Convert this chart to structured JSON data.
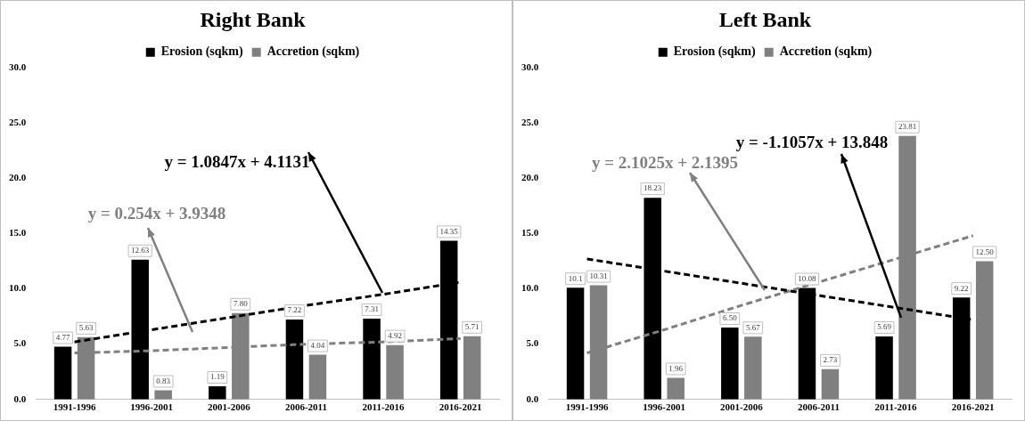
{
  "chart_data": [
    {
      "type": "bar",
      "title": "Right Bank",
      "categories": [
        "1991-1996",
        "1996-2001",
        "2001-2006",
        "2006-2011",
        "2011-2016",
        "2016-2021"
      ],
      "series": [
        {
          "name": "Erosion (sqkm)",
          "color": "#000000",
          "values": [
            4.77,
            12.63,
            1.19,
            7.22,
            7.31,
            14.35
          ],
          "value_labels": [
            "4.77",
            "12.63",
            "1.19",
            "7.22",
            "7.31",
            "14.35"
          ]
        },
        {
          "name": "Accretion (sqkm)",
          "color": "#808080",
          "values": [
            5.63,
            0.83,
            7.8,
            4.04,
            4.92,
            5.71
          ],
          "value_labels": [
            "5.63",
            "0.83",
            "7.80",
            "4.04",
            "4.92",
            "5.71"
          ]
        },
        {
          "type": "line",
          "color": "#000000",
          "line_style": "dashed",
          "values": [
            5.2,
            6.3,
            7.4,
            8.5,
            9.5,
            10.6
          ]
        },
        {
          "type": "line",
          "color": "#808080",
          "line_style": "dashed",
          "values": [
            4.2,
            4.4,
            4.7,
            5.0,
            5.2,
            5.5
          ]
        }
      ],
      "ylim": [
        0,
        30
      ],
      "yticks": [
        {
          "value": 0,
          "label": "0.0"
        },
        {
          "value": 5,
          "label": "5.0"
        },
        {
          "value": 10,
          "label": "10.0"
        },
        {
          "value": 15,
          "label": "15.0"
        },
        {
          "value": 20,
          "label": "20.0"
        },
        {
          "value": 25,
          "label": "25.0"
        },
        {
          "value": 30,
          "label": "30.0"
        }
      ],
      "grid": false,
      "legend": "top",
      "marker": "none",
      "annotations": [
        "y = 1.0847x + 4.1131",
        "y = 0.254x + 3.9348"
      ]
    },
    {
      "type": "bar",
      "title": "Left Bank",
      "categories": [
        "1991-1996",
        "1996-2001",
        "2001-2006",
        "2006-2011",
        "2011-2016",
        "2016-2021"
      ],
      "series": [
        {
          "name": "Erosion (sqkm)",
          "color": "#000000",
          "values": [
            10.1,
            18.23,
            6.5,
            10.08,
            5.69,
            9.22
          ],
          "value_labels": [
            "10.1",
            "18.23",
            "6.50",
            "10.08",
            "5.69",
            "9.22"
          ]
        },
        {
          "name": "Accretion (sqkm)",
          "color": "#808080",
          "values": [
            10.31,
            1.96,
            5.67,
            2.73,
            23.81,
            12.5
          ],
          "value_labels": [
            "10.31",
            "1.96",
            "5.67",
            "2.73",
            "23.81",
            "12.50"
          ]
        },
        {
          "type": "line",
          "color": "#000000",
          "line_style": "dashed",
          "values": [
            12.7,
            11.6,
            10.5,
            9.4,
            8.3,
            7.2
          ]
        },
        {
          "type": "line",
          "color": "#808080",
          "line_style": "dashed",
          "values": [
            4.2,
            6.3,
            8.5,
            10.6,
            12.7,
            14.8
          ]
        }
      ],
      "ylim": [
        0,
        30
      ],
      "yticks": [
        {
          "value": 0,
          "label": "0.0"
        },
        {
          "value": 5,
          "label": "5.0"
        },
        {
          "value": 10,
          "label": "10.0"
        },
        {
          "value": 15,
          "label": "15.0"
        },
        {
          "value": 20,
          "label": "20.0"
        },
        {
          "value": 25,
          "label": "25.0"
        },
        {
          "value": 30,
          "label": "30.0"
        }
      ],
      "grid": false,
      "legend": "top",
      "marker": "none",
      "annotations": [
        "y = -1.1057x + 13.848",
        "y = 2.1025x + 2.1395"
      ]
    }
  ]
}
